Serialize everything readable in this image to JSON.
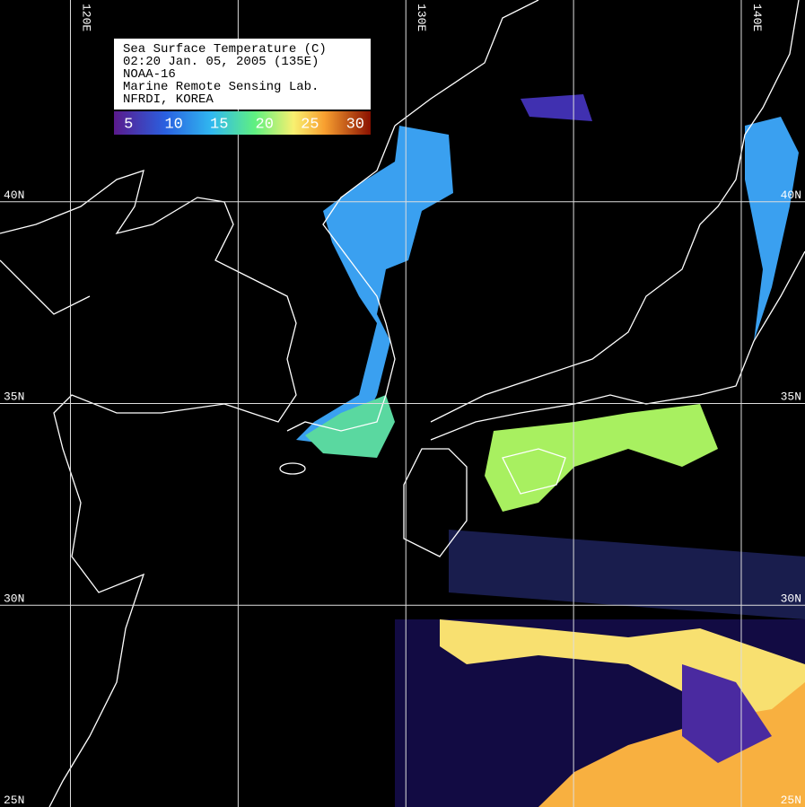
{
  "header": {
    "lines": [
      "Sea Surface Temperature (C)",
      "02:20 Jan. 05, 2005 (135E)",
      "NOAA-16",
      "Marine Remote Sensing Lab.",
      "NFRDI, KOREA"
    ]
  },
  "colorbar": {
    "range": [
      3.4,
      31.7
    ],
    "ticks": [
      5,
      10,
      15,
      20,
      25,
      30
    ]
  },
  "map": {
    "lonlim": [
      117.9,
      141.9
    ],
    "latlim": [
      25,
      45
    ],
    "lon_grid": [
      {
        "value": 120,
        "label": "120E"
      },
      125,
      {
        "value": 130,
        "label": "130E"
      },
      135,
      {
        "value": 140,
        "label": "140E"
      }
    ],
    "lat_grid": [
      {
        "value": 40,
        "label": "40N"
      },
      {
        "value": 35,
        "label": "35N"
      },
      {
        "value": 30,
        "label": "30N"
      },
      {
        "value": 25,
        "label": "25N"
      }
    ]
  }
}
